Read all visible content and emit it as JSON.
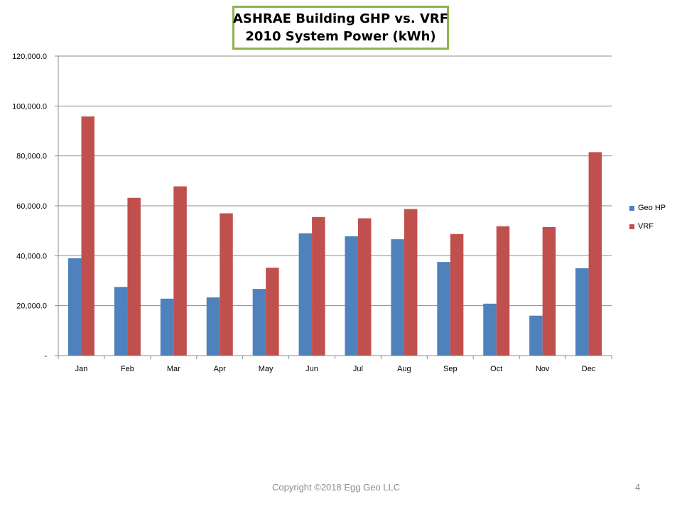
{
  "slide": {
    "title_line1": "ASHRAE  Building GHP vs. VRF",
    "title_line2": "2010 System Power (kWh)",
    "footer": "Copyright ©2018 Egg Geo LLC",
    "page_number": "4"
  },
  "chart_data": {
    "type": "bar",
    "title": "ASHRAE  Building GHP vs. VRF 2010 System Power (kWh)",
    "categories": [
      "Jan",
      "Feb",
      "Mar",
      "Apr",
      "May",
      "Jun",
      "Jul",
      "Aug",
      "Sep",
      "Oct",
      "Nov",
      "Dec"
    ],
    "series": [
      {
        "name": "Geo HP",
        "color": "#4f81bd",
        "values": [
          39000,
          27500,
          22800,
          23300,
          26700,
          49000,
          47800,
          46600,
          37500,
          20800,
          16000,
          35000
        ]
      },
      {
        "name": "VRF",
        "color": "#c0504d",
        "values": [
          95800,
          63200,
          67800,
          57000,
          35200,
          55500,
          55000,
          58700,
          48700,
          51800,
          51500,
          81500
        ]
      }
    ],
    "y_ticks": [
      "-",
      "20,000.0",
      "40,000.0",
      "60,000.0",
      "80,000.0",
      "100,000.0",
      "120,000.0"
    ],
    "ylim": [
      0,
      120000
    ],
    "grid": true,
    "legend_position": "right"
  }
}
